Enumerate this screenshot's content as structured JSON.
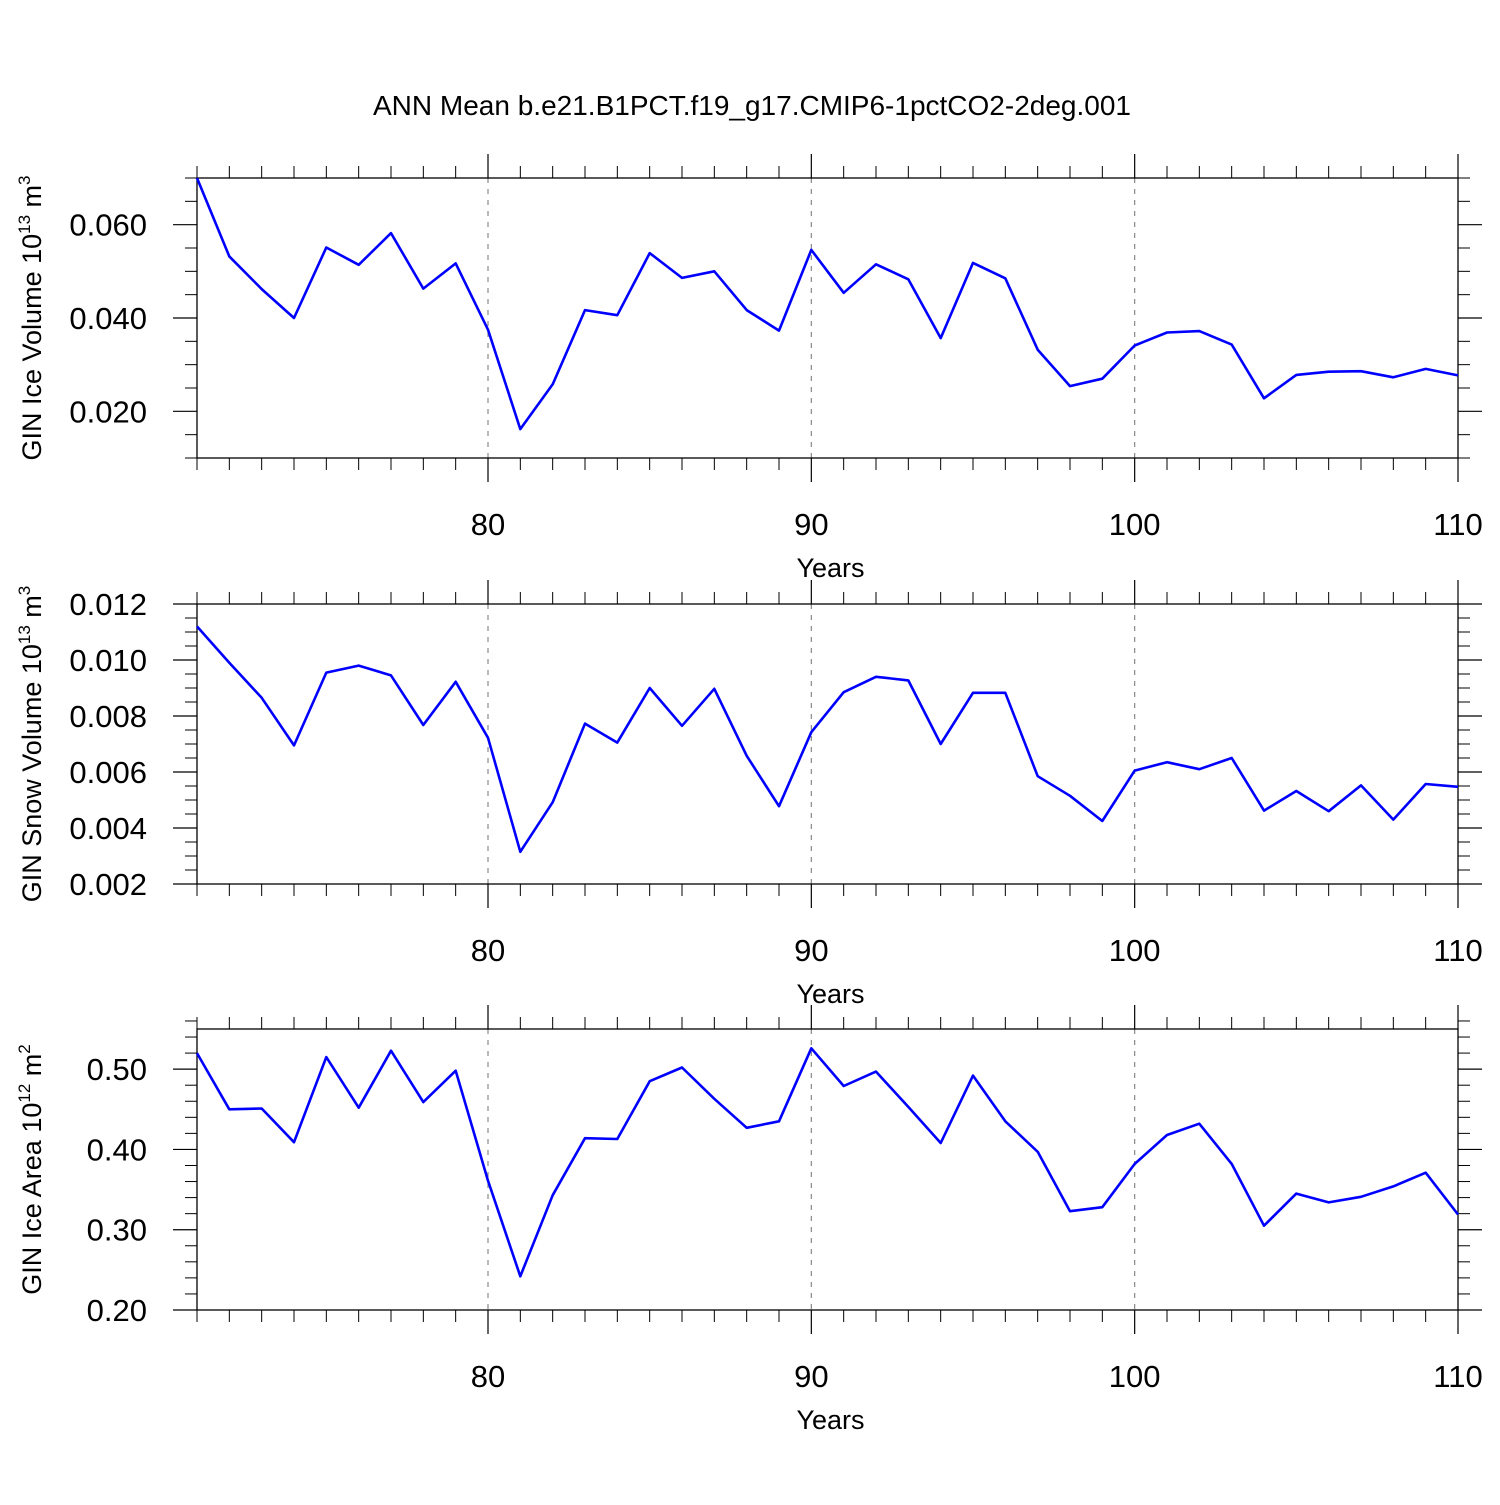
{
  "title": "ANN Mean b.e21.B1PCT.f19_g17.CMIP6-1pctCO2-2deg.001",
  "colors": {
    "line": "#0000ff",
    "axis": "#000000",
    "grid": "#888888"
  },
  "chart_data": [
    {
      "type": "line",
      "xlabel": "Years",
      "ylabel": {
        "text": "GIN Ice Volume 10",
        "exponent": "13",
        "unit": " m",
        "unit_exponent": "3"
      },
      "xlim": [
        71,
        110
      ],
      "ylim": [
        0.01,
        0.07
      ],
      "xticks": [
        80,
        90,
        100,
        110
      ],
      "xtick_labels": [
        "80",
        "90",
        "100",
        "110"
      ],
      "yticks": [
        0.02,
        0.04,
        0.06
      ],
      "ytick_labels": [
        "0.020",
        "0.040",
        "0.060"
      ],
      "ytick_minor": 0.005,
      "grid": "dashed vertical lines at major x ticks",
      "series": [
        {
          "x": [
            71,
            72,
            73,
            74,
            75,
            76,
            77,
            78,
            79,
            80,
            81,
            82,
            83,
            84,
            85,
            86,
            87,
            88,
            89,
            90,
            91,
            92,
            93,
            94,
            95,
            96,
            97,
            98,
            99,
            100,
            101,
            102,
            103,
            104,
            105,
            106,
            107,
            108,
            109,
            110
          ],
          "y": [
            0.07,
            0.0532,
            0.0462,
            0.04,
            0.0551,
            0.0514,
            0.0582,
            0.0463,
            0.0517,
            0.0375,
            0.0162,
            0.0258,
            0.0417,
            0.0406,
            0.0539,
            0.0486,
            0.05,
            0.0417,
            0.0373,
            0.0546,
            0.0454,
            0.0515,
            0.0483,
            0.0357,
            0.0518,
            0.0485,
            0.0332,
            0.0254,
            0.027,
            0.0341,
            0.0369,
            0.0372,
            0.0343,
            0.0228,
            0.0278,
            0.0285,
            0.0286,
            0.0273,
            0.0291,
            0.0277
          ]
        }
      ]
    },
    {
      "type": "line",
      "xlabel": "Years",
      "ylabel": {
        "text": "GIN Snow Volume 10",
        "exponent": "13",
        "unit": " m",
        "unit_exponent": "3"
      },
      "xlim": [
        71,
        110
      ],
      "ylim": [
        0.002,
        0.012
      ],
      "xticks": [
        80,
        90,
        100,
        110
      ],
      "xtick_labels": [
        "80",
        "90",
        "100",
        "110"
      ],
      "yticks": [
        0.002,
        0.004,
        0.006,
        0.008,
        0.01,
        0.012
      ],
      "ytick_labels": [
        "0.002",
        "0.004",
        "0.006",
        "0.008",
        "0.010",
        "0.012"
      ],
      "ytick_minor": 0.0005,
      "grid": "dashed vertical lines at major x ticks",
      "series": [
        {
          "x": [
            71,
            72,
            73,
            74,
            75,
            76,
            77,
            78,
            79,
            80,
            81,
            82,
            83,
            84,
            85,
            86,
            87,
            88,
            89,
            90,
            91,
            92,
            93,
            94,
            95,
            96,
            97,
            98,
            99,
            100,
            101,
            102,
            103,
            104,
            105,
            106,
            107,
            108,
            109,
            110
          ],
          "y": [
            0.0112,
            0.0099,
            0.00865,
            0.00695,
            0.00955,
            0.0098,
            0.00945,
            0.00768,
            0.00922,
            0.00722,
            0.00315,
            0.00492,
            0.00773,
            0.00705,
            0.009,
            0.00765,
            0.00897,
            0.00658,
            0.00478,
            0.00742,
            0.00885,
            0.0094,
            0.00927,
            0.007,
            0.00883,
            0.00883,
            0.00585,
            0.00515,
            0.00425,
            0.00605,
            0.00635,
            0.0061,
            0.0065,
            0.00462,
            0.00532,
            0.0046,
            0.00552,
            0.0043,
            0.00557,
            0.00547
          ]
        }
      ]
    },
    {
      "type": "line",
      "xlabel": "Years",
      "ylabel": {
        "text": "GIN Ice Area 10",
        "exponent": "12",
        "unit": " m",
        "unit_exponent": "2"
      },
      "xlim": [
        71,
        110
      ],
      "ylim": [
        0.2,
        0.55
      ],
      "xticks": [
        80,
        90,
        100,
        110
      ],
      "xtick_labels": [
        "80",
        "90",
        "100",
        "110"
      ],
      "yticks": [
        0.2,
        0.3,
        0.4,
        0.5
      ],
      "ytick_labels": [
        "0.20",
        "0.30",
        "0.40",
        "0.50"
      ],
      "ytick_minor": 0.02,
      "grid": "dashed vertical lines at major x ticks",
      "series": [
        {
          "x": [
            71,
            72,
            73,
            74,
            75,
            76,
            77,
            78,
            79,
            80,
            81,
            82,
            83,
            84,
            85,
            86,
            87,
            88,
            89,
            90,
            91,
            92,
            93,
            94,
            95,
            96,
            97,
            98,
            99,
            100,
            101,
            102,
            103,
            104,
            105,
            106,
            107,
            108,
            109,
            110
          ],
          "y": [
            0.52,
            0.45,
            0.451,
            0.409,
            0.515,
            0.452,
            0.523,
            0.459,
            0.498,
            0.361,
            0.242,
            0.343,
            0.414,
            0.413,
            0.485,
            0.502,
            0.463,
            0.427,
            0.435,
            0.526,
            0.479,
            0.497,
            0.453,
            0.408,
            0.492,
            0.435,
            0.397,
            0.323,
            0.328,
            0.382,
            0.418,
            0.432,
            0.382,
            0.305,
            0.345,
            0.334,
            0.341,
            0.354,
            0.371,
            0.319
          ]
        }
      ]
    }
  ]
}
